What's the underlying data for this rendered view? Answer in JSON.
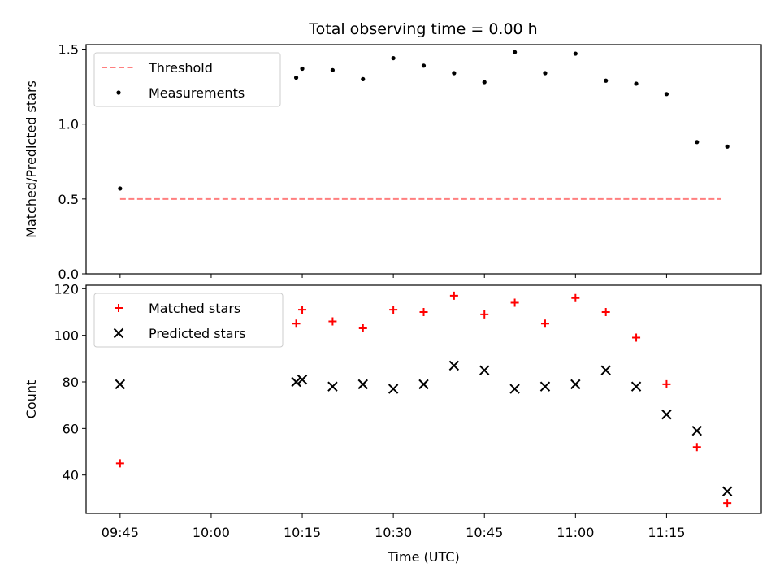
{
  "title": "Total observing time = 0.00 h",
  "chart_data": [
    {
      "type": "scatter",
      "panel": "top",
      "ylabel": "Matched/Predicted stars",
      "ylim": [
        0,
        1.53
      ],
      "yticks": [
        0.0,
        0.5,
        1.0,
        1.5
      ],
      "ytick_labels": [
        "0.0",
        "0.5",
        "1.0",
        "1.5"
      ],
      "legend_position": "top-left",
      "series": [
        {
          "name": "Threshold",
          "kind": "line",
          "style": "dashed",
          "color": "#ff7f7f",
          "x": [
            "09:45",
            "11:24"
          ],
          "y": [
            0.5,
            0.5
          ]
        },
        {
          "name": "Measurements",
          "kind": "scatter",
          "marker": "dot",
          "color": "#000000",
          "x": [
            "09:45",
            "10:14",
            "10:15",
            "10:20",
            "10:25",
            "10:30",
            "10:35",
            "10:40",
            "10:45",
            "10:50",
            "10:55",
            "11:00",
            "11:05",
            "11:10",
            "11:15",
            "11:20",
            "11:25"
          ],
          "y": [
            0.57,
            1.31,
            1.37,
            1.36,
            1.3,
            1.44,
            1.39,
            1.34,
            1.28,
            1.48,
            1.34,
            1.47,
            1.29,
            1.27,
            1.2,
            0.88,
            0.85
          ]
        }
      ]
    },
    {
      "type": "scatter",
      "panel": "bottom",
      "xlabel": "Time (UTC)",
      "ylabel": "Count",
      "ylim": [
        23.5,
        121.5
      ],
      "yticks": [
        40,
        60,
        80,
        100,
        120
      ],
      "ytick_labels": [
        "40",
        "60",
        "80",
        "100",
        "120"
      ],
      "xlim": [
        "09:39:24",
        "11:30:36"
      ],
      "xticks": [
        "09:45",
        "10:00",
        "10:15",
        "10:30",
        "10:45",
        "11:00",
        "11:15"
      ],
      "legend_position": "top-left",
      "series": [
        {
          "name": "Matched stars",
          "kind": "scatter",
          "marker": "plus",
          "color": "#ff0000",
          "x": [
            "09:45",
            "10:14",
            "10:15",
            "10:20",
            "10:25",
            "10:30",
            "10:35",
            "10:40",
            "10:45",
            "10:50",
            "10:55",
            "11:00",
            "11:05",
            "11:10",
            "11:15",
            "11:20",
            "11:25"
          ],
          "y": [
            45,
            105,
            111,
            106,
            103,
            111,
            110,
            117,
            109,
            114,
            105,
            116,
            110,
            99,
            79,
            52,
            28
          ]
        },
        {
          "name": "Predicted stars",
          "kind": "scatter",
          "marker": "x",
          "color": "#000000",
          "x": [
            "09:45",
            "10:14",
            "10:15",
            "10:20",
            "10:25",
            "10:30",
            "10:35",
            "10:40",
            "10:45",
            "10:50",
            "10:55",
            "11:00",
            "11:05",
            "11:10",
            "11:15",
            "11:20",
            "11:25"
          ],
          "y": [
            79,
            80,
            81,
            78,
            79,
            77,
            79,
            87,
            85,
            77,
            78,
            79,
            85,
            78,
            66,
            59,
            33
          ]
        }
      ]
    }
  ]
}
